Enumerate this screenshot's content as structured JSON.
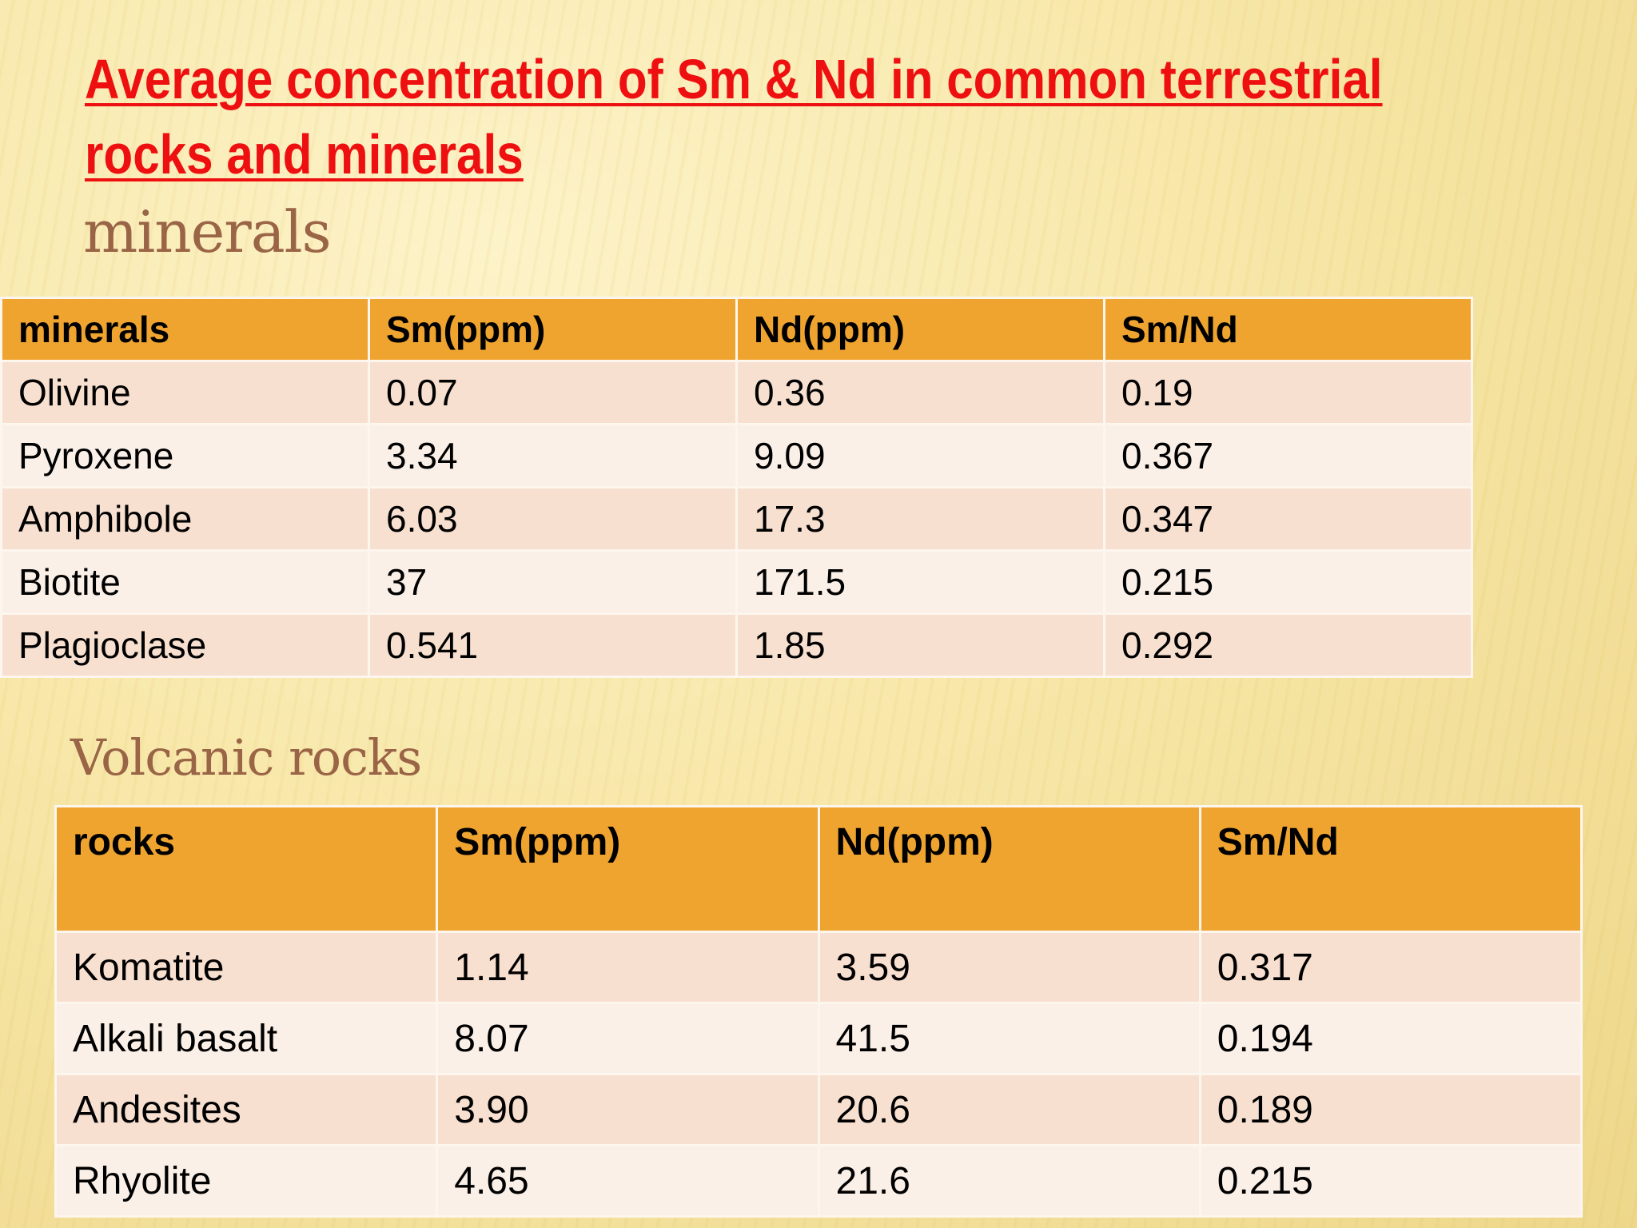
{
  "slide": {
    "title_line1": "Average concentration of Sm & Nd in common terrestrial",
    "title_line2": "rocks and minerals",
    "minerals_heading": "minerals",
    "volcanic_heading": "Volcanic rocks"
  },
  "colors": {
    "title": "#ee1010",
    "subheading": "#9a6446",
    "header_fill": "#f0a430",
    "row_odd": "#f8e0d0",
    "row_even": "#fbf0e8"
  },
  "minerals_table": {
    "headers": [
      "minerals",
      "Sm(ppm)",
      "Nd(ppm)",
      "Sm/Nd"
    ],
    "rows": [
      [
        "Olivine",
        "0.07",
        "0.36",
        "0.19"
      ],
      [
        "Pyroxene",
        "3.34",
        "9.09",
        "0.367"
      ],
      [
        "Amphibole",
        "6.03",
        "17.3",
        "0.347"
      ],
      [
        "Biotite",
        "37",
        "171.5",
        "0.215"
      ],
      [
        "Plagioclase",
        "0.541",
        "1.85",
        "0.292"
      ]
    ]
  },
  "rocks_table": {
    "headers": [
      "rocks",
      "Sm(ppm)",
      "Nd(ppm)",
      "Sm/Nd"
    ],
    "rows": [
      [
        "Komatite",
        "1.14",
        "3.59",
        "0.317"
      ],
      [
        "Alkali basalt",
        "8.07",
        "41.5",
        "0.194"
      ],
      [
        "Andesites",
        "3.90",
        "20.6",
        "0.189"
      ],
      [
        "Rhyolite",
        "4.65",
        "21.6",
        "0.215"
      ]
    ]
  }
}
